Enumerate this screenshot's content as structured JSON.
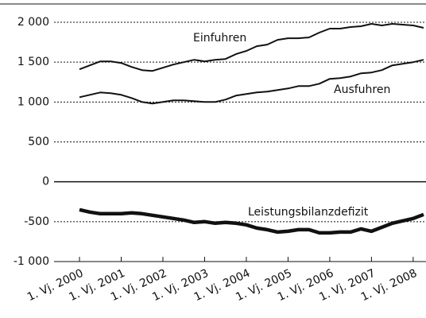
{
  "chart_data": {
    "type": "line",
    "categories": [
      "1. Vj. 2000",
      null,
      null,
      null,
      "1. Vj. 2001",
      null,
      null,
      null,
      "1. Vj. 2002",
      null,
      null,
      null,
      "1. Vj. 2003",
      null,
      null,
      null,
      "1. Vj. 2004",
      null,
      null,
      null,
      "1. Vj. 2005",
      null,
      null,
      null,
      "1. Vj. 2006",
      null,
      null,
      null,
      "1. Vj. 2007",
      null,
      null,
      null,
      "1. Vj. 2008",
      null
    ],
    "series": [
      {
        "name": "Einfuhren",
        "color": "#111111",
        "line_width": 2,
        "values": [
          1410,
          1460,
          1510,
          1510,
          1490,
          1440,
          1400,
          1390,
          1430,
          1470,
          1500,
          1530,
          1510,
          1530,
          1540,
          1600,
          1640,
          1700,
          1720,
          1780,
          1800,
          1800,
          1810,
          1870,
          1920,
          1920,
          1940,
          1950,
          1980,
          1960,
          1980,
          1970,
          1960,
          1930
        ]
      },
      {
        "name": "Ausfuhren",
        "color": "#111111",
        "line_width": 2,
        "values": [
          1060,
          1090,
          1120,
          1110,
          1090,
          1050,
          1000,
          980,
          1000,
          1020,
          1020,
          1010,
          1000,
          1000,
          1030,
          1080,
          1100,
          1120,
          1130,
          1150,
          1170,
          1200,
          1200,
          1230,
          1290,
          1300,
          1320,
          1360,
          1370,
          1400,
          1460,
          1480,
          1500,
          1530
        ]
      },
      {
        "name": "Leistungsbilanzdefizit",
        "color": "#111111",
        "line_width": 4.5,
        "values": [
          -350,
          -380,
          -400,
          -400,
          -400,
          -390,
          -400,
          -420,
          -440,
          -460,
          -480,
          -510,
          -500,
          -520,
          -510,
          -520,
          -540,
          -580,
          -600,
          -630,
          -620,
          -600,
          -600,
          -640,
          -640,
          -630,
          -630,
          -590,
          -620,
          -570,
          -520,
          -490,
          -460,
          -410
        ]
      }
    ],
    "ylim": [
      -1000,
      2000
    ],
    "yticks": [
      {
        "value": 2000,
        "label": "2 000"
      },
      {
        "value": 1500,
        "label": "1 500"
      },
      {
        "value": 1000,
        "label": "1 000"
      },
      500,
      0,
      -500,
      {
        "value": -1000,
        "label": "-1 000"
      }
    ],
    "grid": true
  }
}
